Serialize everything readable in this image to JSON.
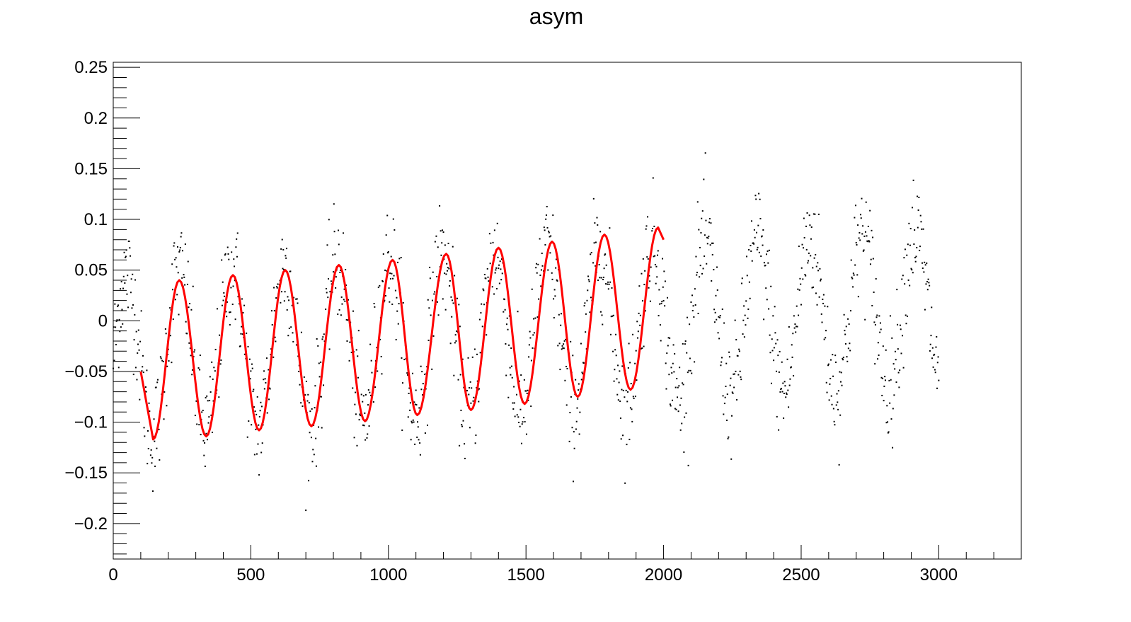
{
  "chart_data": {
    "type": "scatter",
    "title": "asym",
    "xlabel": "",
    "ylabel": "",
    "xlim": [
      0,
      3300
    ],
    "ylim": [
      -0.235,
      0.255
    ],
    "grid": false,
    "legend": "none",
    "x_ticks": [
      0,
      500,
      1000,
      1500,
      2000,
      2500,
      3000
    ],
    "x_tick_labels": [
      "0",
      "500",
      "1000",
      "1500",
      "2000",
      "2500",
      "3000"
    ],
    "y_ticks": [
      -0.2,
      -0.15,
      -0.1,
      -0.05,
      0,
      0.05,
      0.1,
      0.15,
      0.2,
      0.25
    ],
    "y_tick_labels": [
      "−0.2",
      "−0.15",
      "−0.1",
      "−0.05",
      "0",
      "0.05",
      "0.1",
      "0.15",
      "0.2",
      "0.25"
    ],
    "data_points": {
      "x_range": [
        0,
        3000
      ],
      "x_step": 2,
      "oscillation_period": 191,
      "first_peak_x": 240,
      "baseline_start": -0.035,
      "baseline_end": 0.015,
      "amplitude_start": 0.08,
      "amplitude_end": 0.075,
      "noise_sigma": 0.028,
      "color": "#000000"
    },
    "series": [
      {
        "type": "line",
        "x_range": [
          100,
          2000
        ],
        "color": "#ff0000",
        "approx_peaks": [
          [
            240,
            0.04
          ],
          [
            435,
            0.045
          ],
          [
            625,
            0.05
          ],
          [
            820,
            0.055
          ],
          [
            1015,
            0.06
          ],
          [
            1210,
            0.066
          ],
          [
            1400,
            0.072
          ],
          [
            1595,
            0.078
          ],
          [
            1785,
            0.085
          ],
          [
            1980,
            0.092
          ]
        ],
        "approx_troughs": [
          [
            145,
            -0.117
          ],
          [
            338,
            -0.114
          ],
          [
            530,
            -0.108
          ],
          [
            720,
            -0.104
          ],
          [
            915,
            -0.099
          ],
          [
            1105,
            -0.093
          ],
          [
            1300,
            -0.088
          ],
          [
            1495,
            -0.082
          ],
          [
            1688,
            -0.075
          ],
          [
            1880,
            -0.068
          ]
        ]
      }
    ]
  }
}
